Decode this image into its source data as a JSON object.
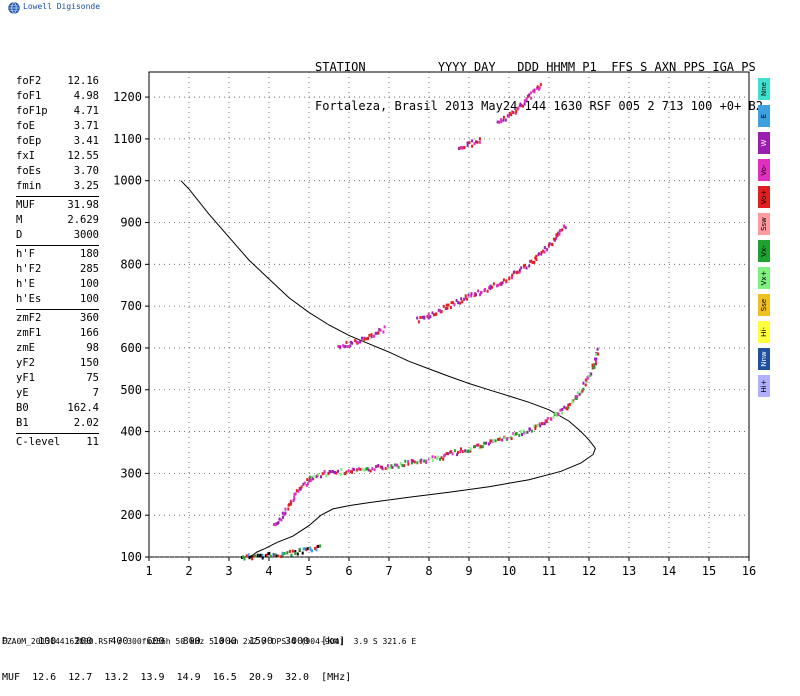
{
  "logo": {
    "text": "Lowell Digisonde",
    "icon": "globe-icon"
  },
  "header": {
    "line1": "STATION          YYYY DAY   DDD HHMM P1  FFS S AXN PPS IGA PS",
    "line2": "Fortaleza, Brasil 2013 May24 144 1630 RSF 005 2 713 100 +0+ B2"
  },
  "params": [
    {
      "label": "foF2",
      "value": "12.16"
    },
    {
      "label": "foF1",
      "value": "4.98"
    },
    {
      "label": "foF1p",
      "value": "4.71"
    },
    {
      "label": "foE",
      "value": "3.71"
    },
    {
      "label": "foEp",
      "value": "3.41"
    },
    {
      "label": "fxI",
      "value": "12.55"
    },
    {
      "label": "foEs",
      "value": "3.70"
    },
    {
      "label": "fmin",
      "value": "3.25"
    },
    {
      "sep": true
    },
    {
      "label": "MUF",
      "value": "31.98"
    },
    {
      "label": "M",
      "value": "2.629"
    },
    {
      "label": "D",
      "value": "3000"
    },
    {
      "sep": true
    },
    {
      "label": "h'F",
      "value": "180"
    },
    {
      "label": "h'F2",
      "value": "285"
    },
    {
      "label": "h'E",
      "value": "100"
    },
    {
      "label": "h'Es",
      "value": "100"
    },
    {
      "sep": true
    },
    {
      "label": "zmF2",
      "value": "360"
    },
    {
      "label": "zmF1",
      "value": "166"
    },
    {
      "label": "zmE",
      "value": "98"
    },
    {
      "label": "yF2",
      "value": "150"
    },
    {
      "label": "yF1",
      "value": "75"
    },
    {
      "label": "yE",
      "value": "7"
    },
    {
      "label": "B0",
      "value": "162.4"
    },
    {
      "label": "B1",
      "value": "2.02"
    },
    {
      "sep": true
    },
    {
      "label": "C-level",
      "value": "11"
    }
  ],
  "legend": [
    {
      "label": "Nne",
      "color": "#40e0d0"
    },
    {
      "label": "E",
      "color": "#3fa0e0"
    },
    {
      "label": "W",
      "color": "#9a1fb0"
    },
    {
      "label": "Vo-",
      "color": "#e030c0"
    },
    {
      "label": "Vo+",
      "color": "#e02020"
    },
    {
      "label": "Ssw",
      "color": "#ff9aa0"
    },
    {
      "label": "Vx-",
      "color": "#20a030"
    },
    {
      "label": "Vx+",
      "color": "#80f080"
    },
    {
      "label": "Sse",
      "color": "#f0c020"
    },
    {
      "label": "Hi-",
      "color": "#ffff40"
    },
    {
      "label": "Nnw",
      "color": "#2050a0"
    },
    {
      "label": "Hi+",
      "color": "#b0b0ff"
    }
  ],
  "footer": {
    "d_row": "D     100   200   400   600   800  1000  1500  3000  [km]",
    "muf_row": "MUF  12.6  12.7  13.2  13.9  14.9  16.5  20.9  32.0  [MHz]",
    "file": "FZA0M_2013144163000.RSF / 300fx256h 50 kHz 5.0 km 2x2 / DPS-4 (904-904)  3.9 S 321.6 E"
  },
  "chart_data": {
    "type": "scatter",
    "xlim": [
      1,
      16
    ],
    "ylim": [
      100,
      1260
    ],
    "x_ticks": [
      1,
      2,
      3,
      4,
      5,
      6,
      7,
      8,
      9,
      10,
      11,
      12,
      13,
      14,
      15,
      16
    ],
    "y_ticks": [
      100,
      200,
      300,
      400,
      500,
      600,
      700,
      800,
      900,
      1000,
      1100,
      1200
    ],
    "grid": "dotted",
    "traces": [
      {
        "name": "es",
        "points": [
          [
            3.3,
            103
          ],
          [
            3.5,
            104
          ],
          [
            3.8,
            106
          ],
          [
            4.1,
            108
          ],
          [
            4.3,
            110
          ],
          [
            4.5,
            112
          ],
          [
            4.8,
            117
          ],
          [
            5.0,
            120
          ],
          [
            5.3,
            125
          ]
        ]
      },
      {
        "name": "f1",
        "points": [
          [
            4.1,
            180
          ],
          [
            4.3,
            200
          ],
          [
            4.5,
            230
          ],
          [
            4.7,
            260
          ],
          [
            4.9,
            280
          ],
          [
            5.0,
            290
          ],
          [
            5.1,
            295
          ]
        ]
      },
      {
        "name": "f2",
        "points": [
          [
            5.0,
            290
          ],
          [
            5.3,
            302
          ],
          [
            5.8,
            307
          ],
          [
            6.4,
            312
          ],
          [
            7.0,
            320
          ],
          [
            7.6,
            330
          ],
          [
            8.2,
            340
          ],
          [
            8.7,
            355
          ],
          [
            9.3,
            370
          ],
          [
            9.8,
            385
          ],
          [
            10.3,
            400
          ],
          [
            10.8,
            420
          ],
          [
            11.1,
            440
          ],
          [
            11.4,
            460
          ],
          [
            11.7,
            490
          ],
          [
            11.9,
            520
          ],
          [
            12.1,
            560
          ],
          [
            12.2,
            600
          ]
        ]
      },
      {
        "name": "f2-2",
        "points": [
          [
            7.7,
            670
          ],
          [
            8.2,
            690
          ],
          [
            8.7,
            715
          ],
          [
            9.2,
            735
          ],
          [
            9.8,
            760
          ],
          [
            10.3,
            790
          ],
          [
            10.8,
            830
          ],
          [
            11.1,
            860
          ],
          [
            11.4,
            900
          ]
        ]
      },
      {
        "name": "f2-3",
        "points": [
          [
            9.7,
            1140
          ],
          [
            10.0,
            1160
          ],
          [
            10.3,
            1185
          ],
          [
            10.6,
            1215
          ],
          [
            10.8,
            1235
          ]
        ]
      },
      {
        "name": "f2-3b",
        "points": [
          [
            8.7,
            1075
          ],
          [
            9.0,
            1090
          ],
          [
            9.3,
            1105
          ]
        ]
      },
      {
        "name": "sporadic",
        "points": [
          [
            5.7,
            608
          ],
          [
            6.0,
            612
          ],
          [
            6.3,
            622
          ],
          [
            6.6,
            635
          ],
          [
            6.9,
            650
          ]
        ]
      }
    ],
    "profile": [
      [
        1.8,
        1000
      ],
      [
        2.0,
        980
      ],
      [
        2.5,
        920
      ],
      [
        3.0,
        865
      ],
      [
        3.5,
        810
      ],
      [
        4.0,
        765
      ],
      [
        4.5,
        720
      ],
      [
        5.0,
        685
      ],
      [
        5.5,
        655
      ],
      [
        6.0,
        630
      ],
      [
        6.5,
        610
      ],
      [
        7.0,
        590
      ],
      [
        7.5,
        568
      ],
      [
        8.0,
        550
      ],
      [
        8.5,
        532
      ],
      [
        9.0,
        515
      ],
      [
        9.5,
        500
      ],
      [
        10.0,
        485
      ],
      [
        10.5,
        470
      ],
      [
        11.0,
        452
      ],
      [
        11.5,
        425
      ],
      [
        11.8,
        400
      ],
      [
        12.0,
        380
      ],
      [
        12.16,
        360
      ],
      [
        12.1,
        345
      ],
      [
        11.8,
        325
      ],
      [
        11.3,
        305
      ],
      [
        10.5,
        285
      ],
      [
        9.5,
        268
      ],
      [
        8.5,
        255
      ],
      [
        7.5,
        243
      ],
      [
        6.5,
        230
      ],
      [
        6.0,
        223
      ],
      [
        5.6,
        215
      ],
      [
        5.3,
        200
      ],
      [
        5.0,
        175
      ],
      [
        4.6,
        150
      ],
      [
        4.2,
        135
      ],
      [
        3.9,
        120
      ],
      [
        3.7,
        112
      ],
      [
        3.6,
        105
      ],
      [
        3.5,
        100
      ]
    ]
  }
}
